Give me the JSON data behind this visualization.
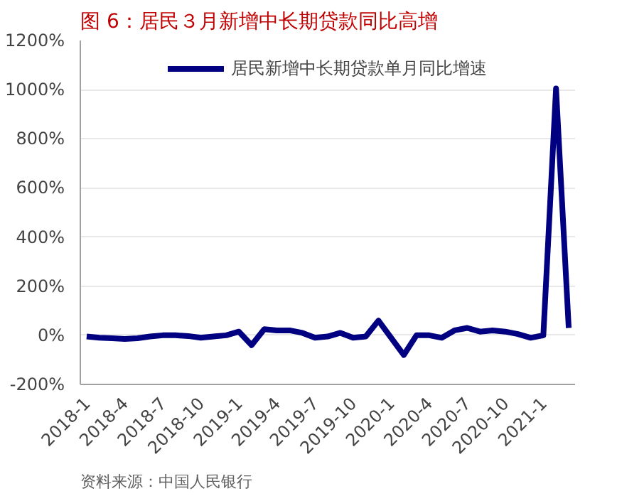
{
  "chart_data": {
    "type": "line",
    "title": "图 6：居民３月新增中长期贷款同比高增",
    "categories": [
      "2018-1",
      null,
      null,
      "2018-4",
      null,
      null,
      "2018-7",
      null,
      null,
      "2018-10",
      null,
      null,
      "2019-1",
      null,
      null,
      "2019-4",
      null,
      null,
      "2019-7",
      null,
      null,
      "2019-10",
      null,
      null,
      "2020-1",
      null,
      null,
      "2020-4",
      null,
      null,
      "2020-7",
      null,
      null,
      "2020-10",
      null,
      null,
      "2021-1",
      null,
      null
    ],
    "series": [
      {
        "name": "居民新增中长期贷款单月同比增速",
        "color": "#000080",
        "values": [
          -5,
          -10,
          -12,
          -15,
          -12,
          -5,
          0,
          0,
          -3,
          -10,
          -5,
          0,
          15,
          -40,
          25,
          20,
          20,
          10,
          -10,
          -5,
          10,
          -10,
          -5,
          60,
          -10,
          -80,
          0,
          0,
          -10,
          20,
          30,
          15,
          20,
          15,
          5,
          -10,
          0,
          1005,
          30
        ]
      }
    ],
    "ylim": [
      -200,
      1200
    ],
    "yticks": [
      {
        "value": -200,
        "label": "-200%"
      },
      {
        "value": 0,
        "label": "0%"
      },
      {
        "value": 200,
        "label": "200%"
      },
      {
        "value": 400,
        "label": "400%"
      },
      {
        "value": 600,
        "label": "600%"
      },
      {
        "value": 800,
        "label": "800%"
      },
      {
        "value": 1000,
        "label": "1000%"
      },
      {
        "value": 1200,
        "label": "1200%"
      }
    ],
    "grid": "y",
    "legend": "top",
    "marker": "none",
    "line_style": "solid",
    "annotations": [
      "资料来源：中国人民银行"
    ]
  }
}
